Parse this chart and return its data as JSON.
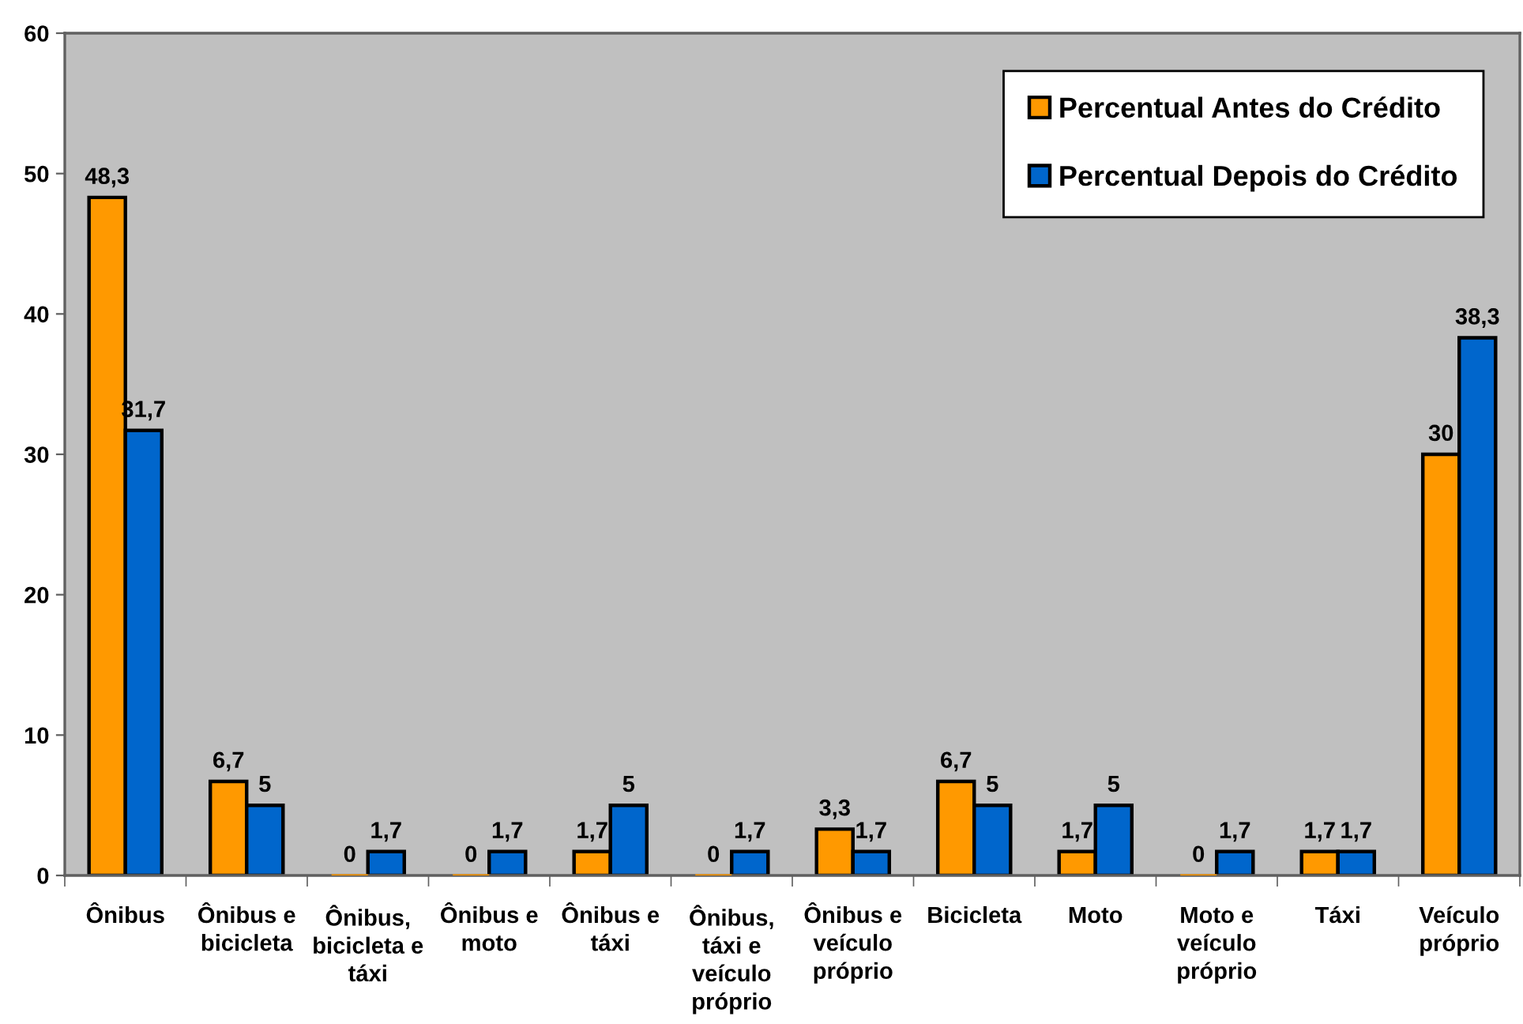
{
  "chart_data": {
    "type": "bar",
    "categories": [
      "Ônibus",
      "Ônibus e\nbicicleta",
      "Ônibus,\nbicicleta e\ntáxi",
      "Ônibus e\nmoto",
      "Ônibus e\ntáxi",
      "Ônibus,\ntáxi e\nveículo\npróprio",
      "Ônibus e\nveículo\npróprio",
      "Bicicleta",
      "Moto",
      "Moto e\nveículo\npróprio",
      "Táxi",
      "Veículo\npróprio"
    ],
    "series": [
      {
        "name": "Percentual Antes do Crédito",
        "color": "#ff9900",
        "values": [
          48.3,
          6.7,
          0,
          0,
          1.7,
          0,
          3.3,
          6.7,
          1.7,
          0,
          1.7,
          30
        ],
        "value_labels": [
          "48,3",
          "6,7",
          "0",
          "0",
          "1,7",
          "0",
          "3,3",
          "6,7",
          "1,7",
          "0",
          "1,7",
          "30"
        ]
      },
      {
        "name": "Percentual Depois do Crédito",
        "color": "#0066cc",
        "values": [
          31.7,
          5,
          1.7,
          1.7,
          5,
          1.7,
          1.7,
          5,
          5,
          1.7,
          1.7,
          38.3
        ],
        "value_labels": [
          "31,7",
          "5",
          "1,7",
          "1,7",
          "5",
          "1,7",
          "1,7",
          "5",
          "5",
          "1,7",
          "1,7",
          "38,3"
        ]
      }
    ],
    "ylim": [
      0,
      60
    ],
    "yticks": [
      0,
      10,
      20,
      30,
      40,
      50,
      60
    ],
    "grid": false,
    "legend": "top right"
  }
}
